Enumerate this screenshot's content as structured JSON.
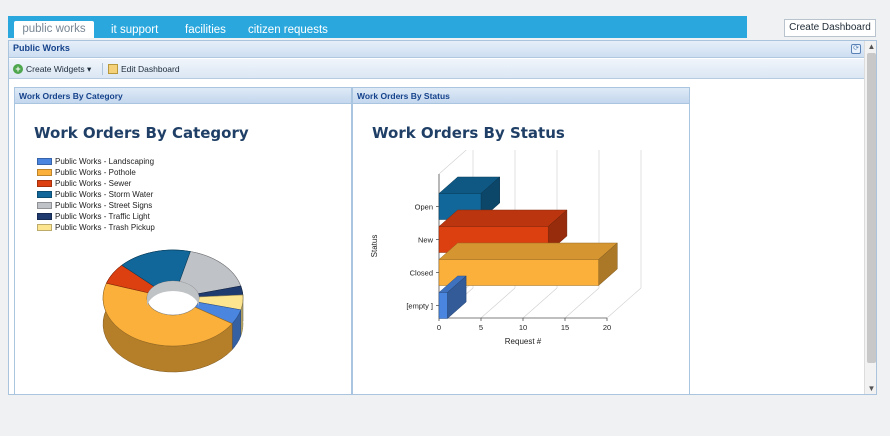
{
  "tabs": [
    {
      "label": "public works",
      "active": true
    },
    {
      "label": "it support",
      "active": false
    },
    {
      "label": "facilities",
      "active": false
    },
    {
      "label": "citizen requests",
      "active": false
    }
  ],
  "create_dashboard_label": "Create Dashboard",
  "section_title": "Public Works",
  "toolbar": {
    "create_widgets_label": "Create Widgets ▾",
    "edit_dashboard_label": "Edit Dashboard"
  },
  "widgets": {
    "category": {
      "header": "Work Orders By Category",
      "title": "Work Orders By Category"
    },
    "status": {
      "header": "Work Orders By Status",
      "title": "Work Orders By Status"
    }
  },
  "chart_data": [
    {
      "type": "pie",
      "title": "Work Orders By Category",
      "donut": true,
      "legend_position": "top-left",
      "categories": [
        "Public Works - Landscaping",
        "Public Works - Pothole",
        "Public Works - Sewer",
        "Public Works - Storm Water",
        "Public Works - Street Signs",
        "Public Works - Traffic Light",
        "Public Works - Trash Pickup"
      ],
      "values": [
        5,
        46,
        7,
        17,
        17,
        3,
        5
      ],
      "colors": [
        "#4a86e0",
        "#fbb03b",
        "#dc4010",
        "#11679a",
        "#bfc2c7",
        "#1f3a6e",
        "#fde590"
      ]
    },
    {
      "type": "bar",
      "title": "Work Orders By Status",
      "orientation": "horizontal",
      "three_d": true,
      "categories": [
        "Open",
        "New",
        "Closed",
        "[empty ]"
      ],
      "values": [
        5,
        13,
        19,
        1
      ],
      "colors": [
        "#11679a",
        "#dc4010",
        "#fbb03b",
        "#4a86e0"
      ],
      "xlabel": "Request #",
      "ylabel": "Status",
      "xlim": [
        0,
        20
      ],
      "xticks": [
        "0",
        "5",
        "10",
        "15",
        "20"
      ],
      "grid": true
    }
  ]
}
